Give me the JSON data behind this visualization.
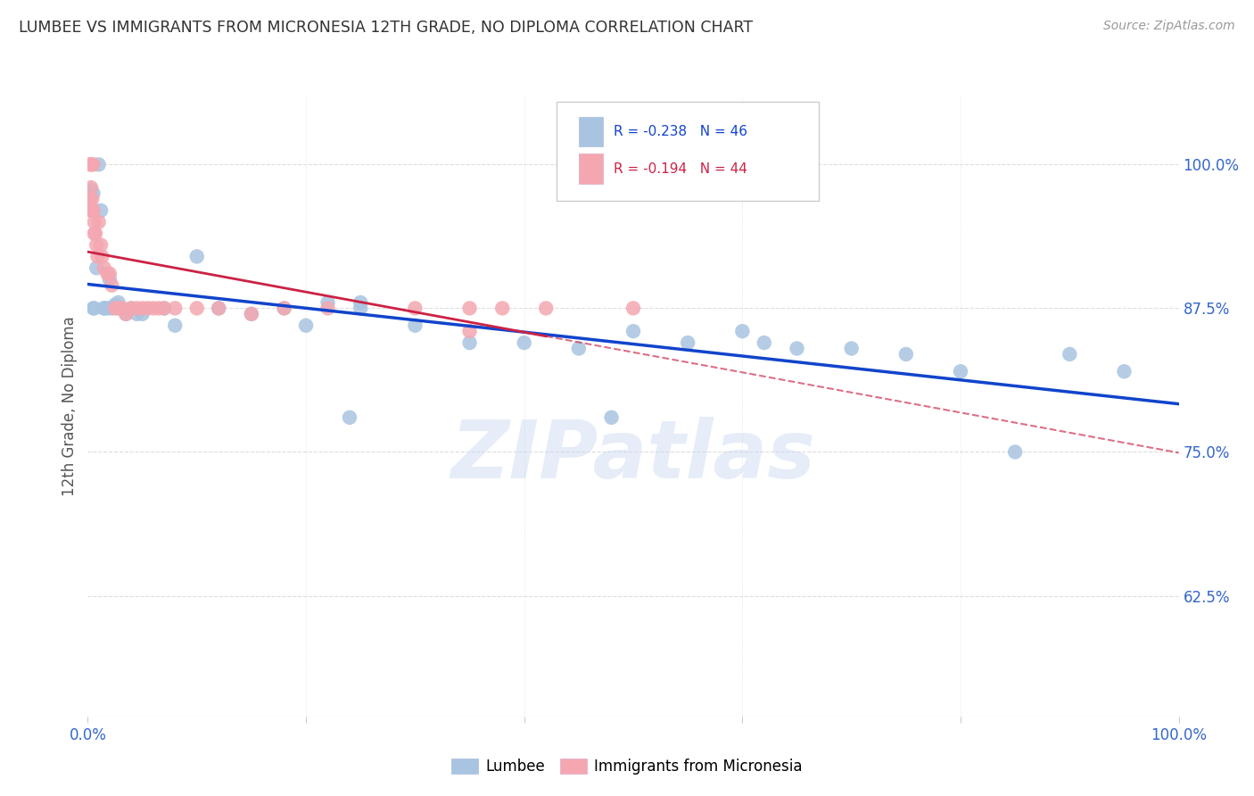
{
  "title": "LUMBEE VS IMMIGRANTS FROM MICRONESIA 12TH GRADE, NO DIPLOMA CORRELATION CHART",
  "source": "Source: ZipAtlas.com",
  "ylabel": "12th Grade, No Diploma",
  "legend_blue_r": "R = -0.238",
  "legend_blue_n": "N = 46",
  "legend_pink_r": "R = -0.194",
  "legend_pink_n": "N = 44",
  "watermark": "ZIPatlas",
  "blue_face": "#a8c4e0",
  "pink_face": "#f4a7b0",
  "blue_line": "#1144cc",
  "pink_line": "#cc2244",
  "grid_color": "#dddddd",
  "axis_color": "#3366cc",
  "title_color": "#333333",
  "xlim": [
    0.0,
    1.0
  ],
  "ylim": [
    0.52,
    1.06
  ],
  "yticks": [
    0.625,
    0.75,
    0.875,
    1.0
  ],
  "ytick_labels": [
    "62.5%",
    "75.0%",
    "87.5%",
    "100.0%"
  ],
  "blue_x": [
    0.003,
    0.005,
    0.008,
    0.01,
    0.012,
    0.015,
    0.018,
    0.02,
    0.022,
    0.025,
    0.028,
    0.03,
    0.035,
    0.04,
    0.045,
    0.05,
    0.07,
    0.08,
    0.1,
    0.12,
    0.18,
    0.2,
    0.22,
    0.25,
    0.3,
    0.35,
    0.4,
    0.45,
    0.5,
    0.55,
    0.6,
    0.62,
    0.65,
    0.7,
    0.75,
    0.8,
    0.85,
    0.9,
    0.95,
    0.005,
    0.015,
    0.24,
    0.48,
    0.15,
    0.006,
    0.25
  ],
  "blue_y": [
    0.978,
    0.975,
    0.91,
    1.0,
    0.96,
    0.875,
    0.875,
    0.9,
    0.875,
    0.878,
    0.88,
    0.875,
    0.87,
    0.875,
    0.87,
    0.87,
    0.875,
    0.86,
    0.92,
    0.875,
    0.875,
    0.86,
    0.88,
    0.875,
    0.86,
    0.845,
    0.845,
    0.84,
    0.855,
    0.845,
    0.855,
    0.845,
    0.84,
    0.84,
    0.835,
    0.82,
    0.75,
    0.835,
    0.82,
    0.875,
    0.875,
    0.78,
    0.78,
    0.87,
    0.875,
    0.88
  ],
  "pink_x": [
    0.002,
    0.003,
    0.003,
    0.004,
    0.005,
    0.005,
    0.006,
    0.006,
    0.007,
    0.008,
    0.009,
    0.01,
    0.012,
    0.013,
    0.015,
    0.018,
    0.02,
    0.022,
    0.025,
    0.028,
    0.032,
    0.035,
    0.04,
    0.045,
    0.05,
    0.055,
    0.06,
    0.065,
    0.07,
    0.08,
    0.1,
    0.12,
    0.15,
    0.18,
    0.22,
    0.3,
    0.35,
    0.38,
    0.42,
    0.5,
    0.002,
    0.003,
    0.004,
    0.35
  ],
  "pink_y": [
    1.0,
    1.0,
    0.98,
    0.97,
    1.0,
    0.96,
    0.95,
    0.94,
    0.94,
    0.93,
    0.92,
    0.95,
    0.93,
    0.92,
    0.91,
    0.905,
    0.905,
    0.895,
    0.875,
    0.875,
    0.875,
    0.87,
    0.875,
    0.875,
    0.875,
    0.875,
    0.875,
    0.875,
    0.875,
    0.875,
    0.875,
    0.875,
    0.87,
    0.875,
    0.875,
    0.875,
    0.875,
    0.875,
    0.875,
    0.875,
    0.97,
    0.96,
    0.96,
    0.855
  ]
}
